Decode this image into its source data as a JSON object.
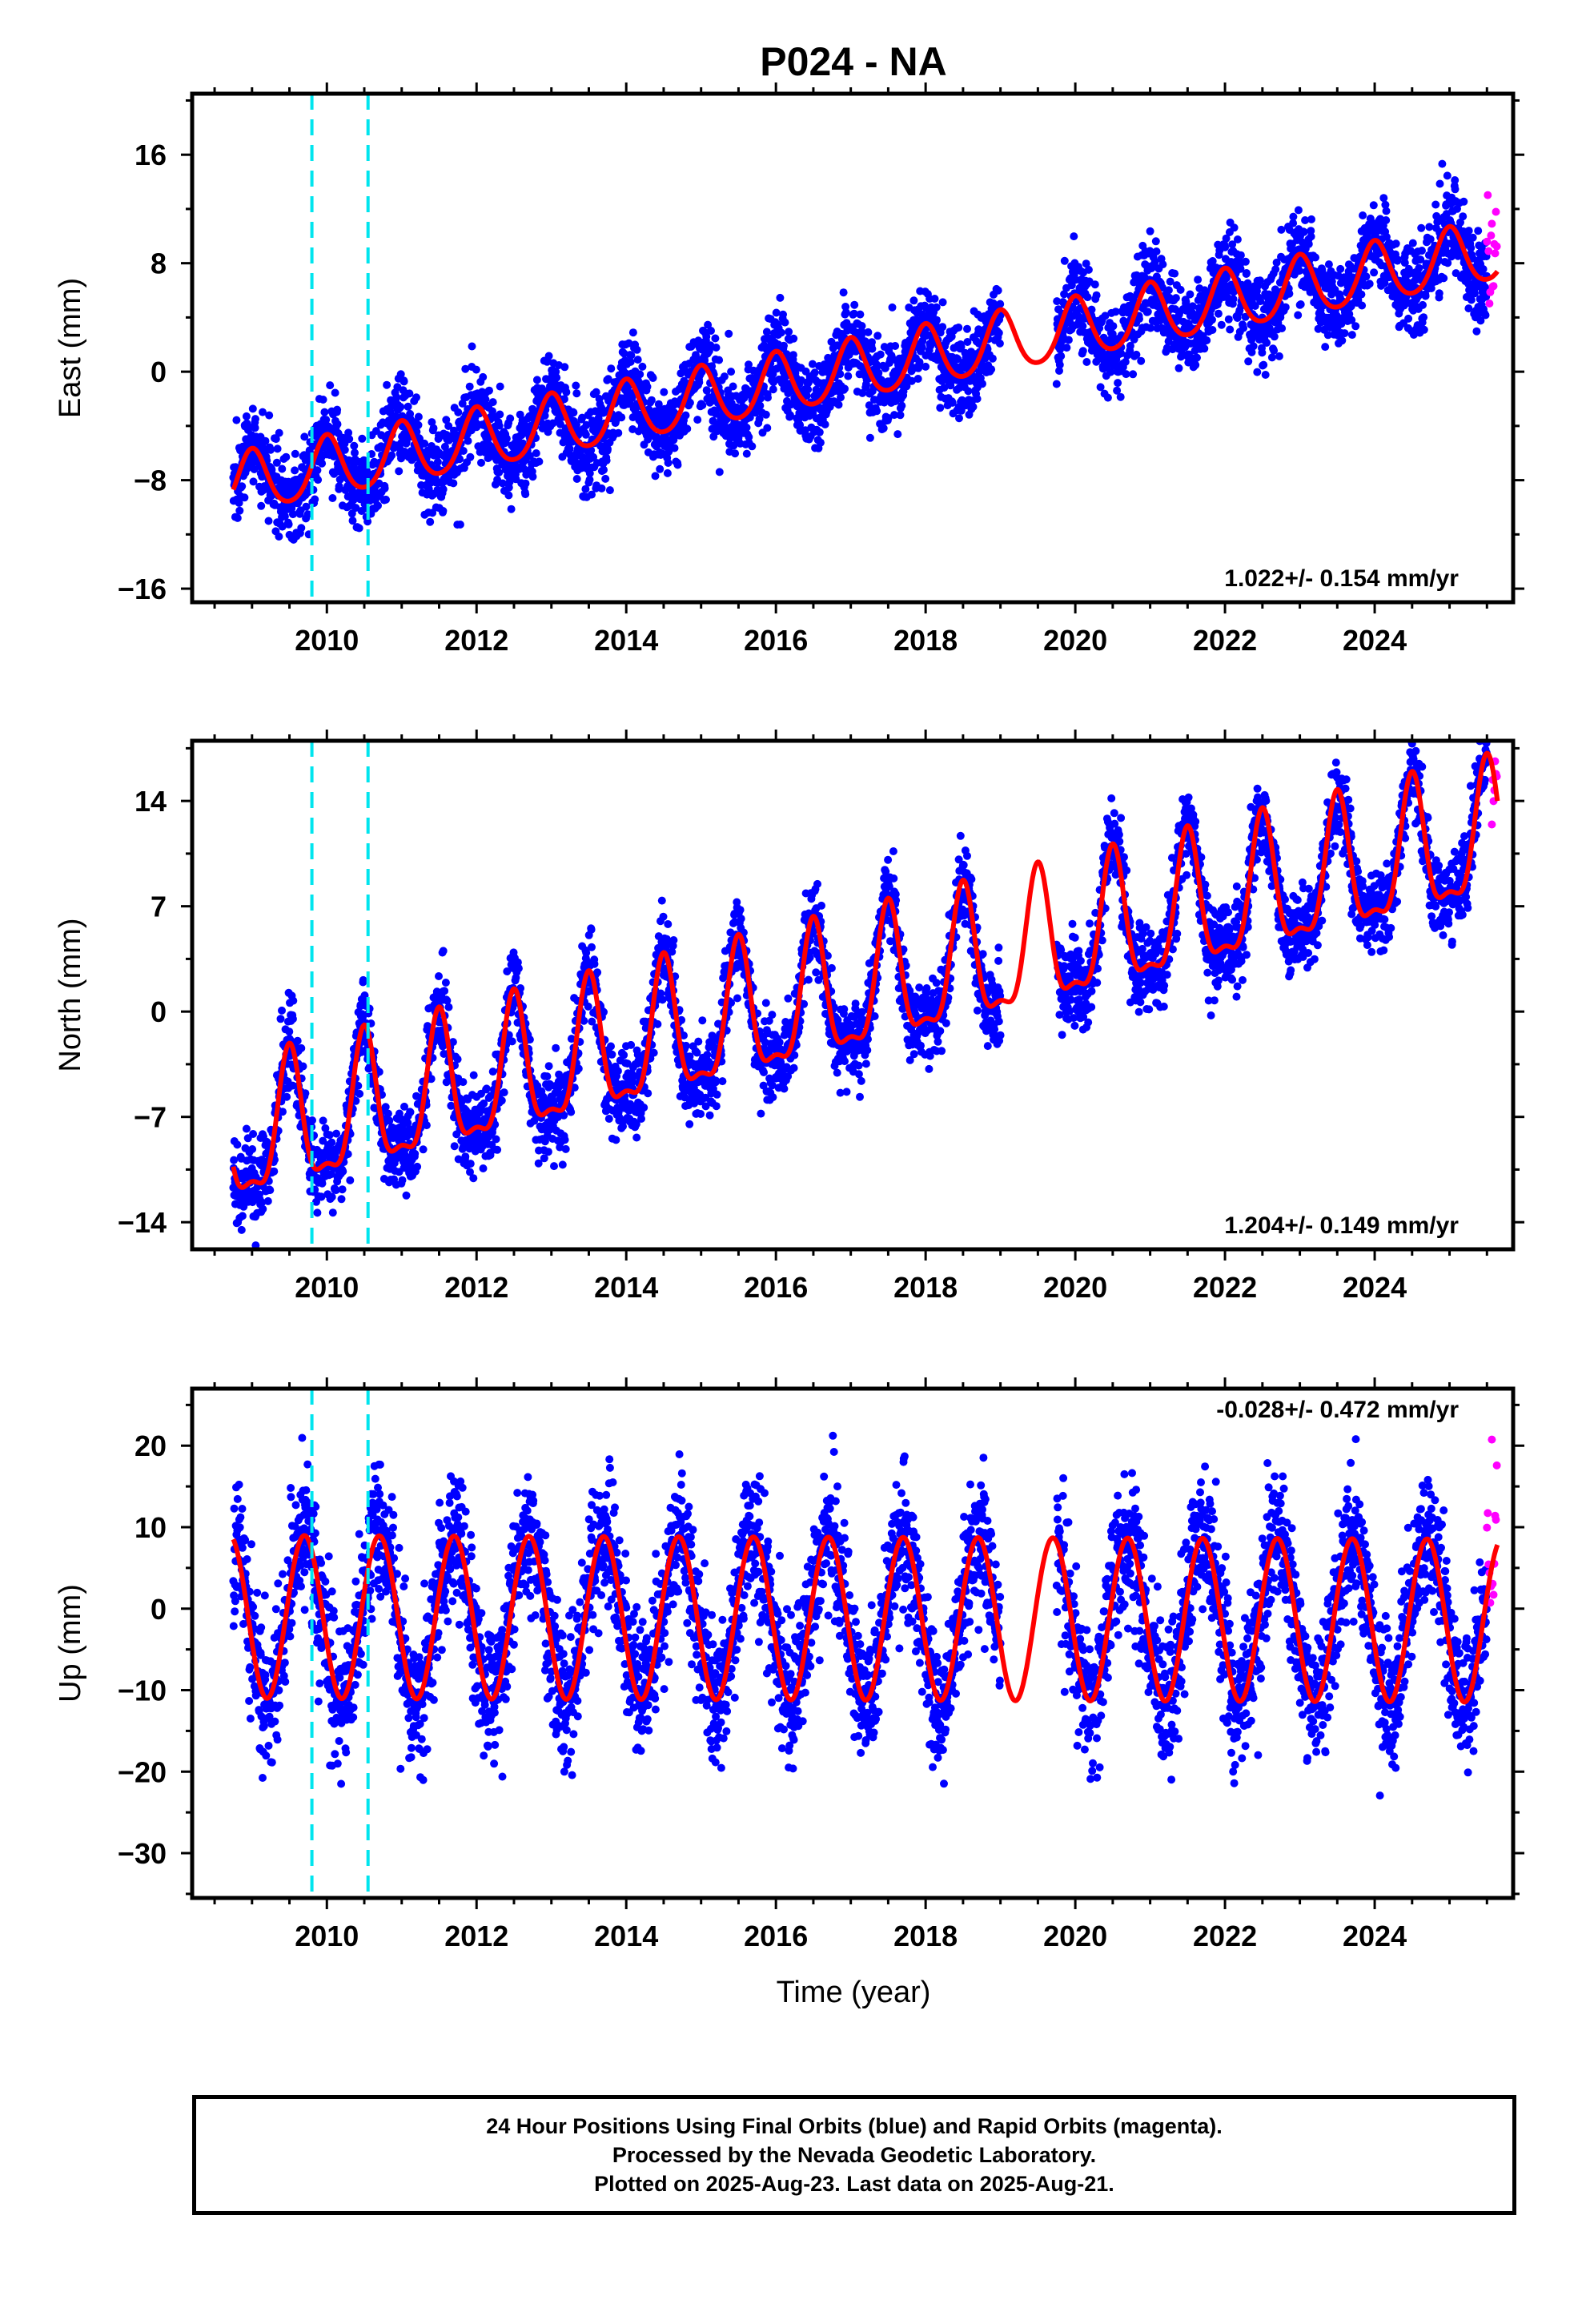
{
  "title": "P024 - NA",
  "colors": {
    "final_orbits": "#0000ff",
    "rapid_orbits": "#ff00ff",
    "model": "#ff0000",
    "event_lines": "#00e5ee"
  },
  "xlabel": "Time (year)",
  "caption": {
    "line1": "24 Hour Positions Using Final Orbits (blue) and Rapid Orbits (magenta).",
    "line2": "Processed by the Nevada Geodetic Laboratory.",
    "line3": "Plotted on 2025-Aug-23. Last data on 2025-Aug-21."
  },
  "chart_data": [
    {
      "type": "scatter",
      "panel": "east",
      "ylabel": "East (mm)",
      "rate_label": "1.022+/- 0.154 mm/yr",
      "rate_position": "bottom-right",
      "xlim": [
        2008.2,
        2025.85
      ],
      "ylim": [
        -17,
        20.5
      ],
      "xticks": [
        2010,
        2012,
        2014,
        2016,
        2018,
        2020,
        2022,
        2024
      ],
      "yticks": [
        -16,
        -8,
        0,
        8,
        16
      ],
      "event_lines_x": [
        2009.8,
        2010.55
      ],
      "data_span": [
        2008.75,
        2025.64
      ],
      "data_gap": [
        2019.0,
        2019.75
      ],
      "rapid_span": [
        2025.5,
        2025.64
      ],
      "model": {
        "intercept": -8.4,
        "rate": 1.022,
        "annual_amplitude": 2.2,
        "annual_peak": 0.0,
        "semiannual_amplitude": 0.3,
        "noise_sd": 1.6
      }
    },
    {
      "type": "scatter",
      "panel": "north",
      "ylabel": "North (mm)",
      "rate_label": "1.204+/- 0.149 mm/yr",
      "rate_position": "bottom-right",
      "xlim": [
        2008.2,
        2025.85
      ],
      "ylim": [
        -15.8,
        18
      ],
      "xticks": [
        2010,
        2012,
        2014,
        2016,
        2018,
        2020,
        2022,
        2024
      ],
      "yticks": [
        -14,
        -7,
        0,
        7,
        14
      ],
      "event_lines_x": [
        2009.8,
        2010.55
      ],
      "data_span": [
        2008.75,
        2025.64
      ],
      "data_gap": [
        2019.0,
        2019.75
      ],
      "rapid_span": [
        2025.5,
        2025.64
      ],
      "model": {
        "intercept": -8.8,
        "rate": 1.204,
        "annual_amplitude": 4.3,
        "annual_peak": 0.5,
        "semiannual_amplitude": 1.5,
        "noise_sd": 1.4
      }
    },
    {
      "type": "scatter",
      "panel": "up",
      "ylabel": "Up (mm)",
      "rate_label": "-0.028+/- 0.472 mm/yr",
      "rate_position": "top-right",
      "xlim": [
        2008.2,
        2025.85
      ],
      "ylim": [
        -35.5,
        27
      ],
      "xticks": [
        2010,
        2012,
        2014,
        2016,
        2018,
        2020,
        2022,
        2024
      ],
      "yticks": [
        -30,
        -20,
        -10,
        0,
        10,
        20
      ],
      "event_lines_x": [
        2009.8,
        2010.55
      ],
      "data_span": [
        2008.75,
        2025.64
      ],
      "data_gap": [
        2019.0,
        2019.75
      ],
      "rapid_span": [
        2025.5,
        2025.64
      ],
      "model": {
        "intercept": -1.0,
        "rate": -0.028,
        "annual_amplitude": 10.0,
        "annual_peak": 0.7,
        "semiannual_amplitude": 0.0,
        "noise_sd": 4.2
      }
    }
  ]
}
